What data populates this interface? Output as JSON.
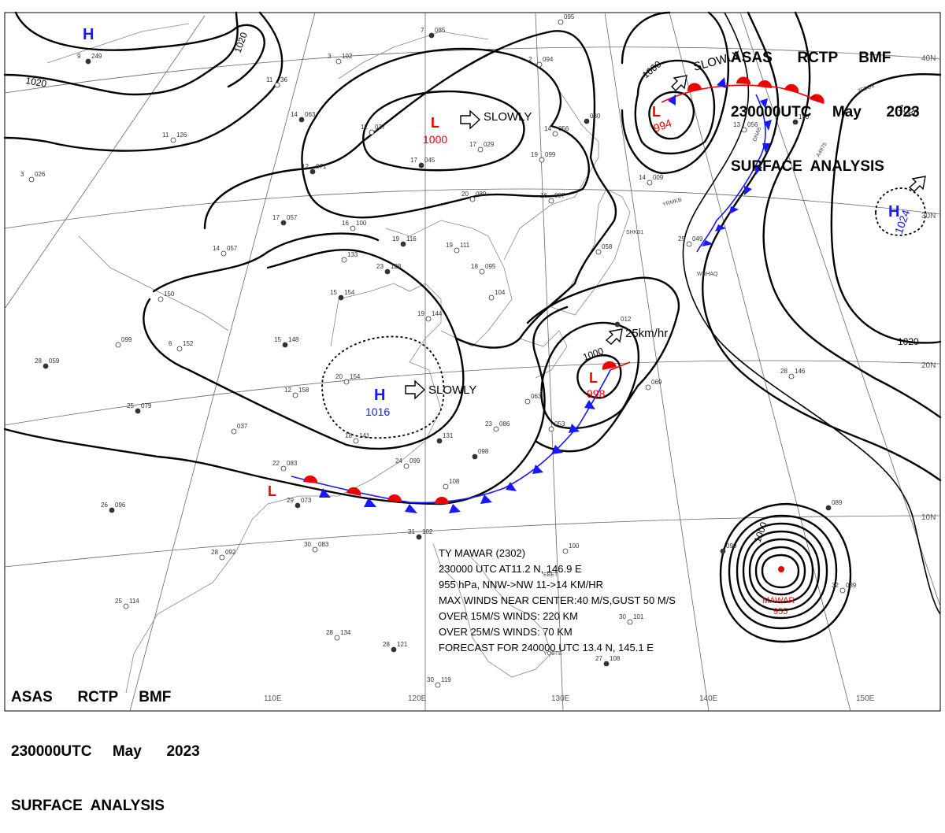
{
  "header": {
    "line1": "ASAS      RCTP     BMF",
    "line2": "230000UTC     May      2023",
    "line3": "SURFACE  ANALYSIS"
  },
  "pressure_centers": [
    {
      "id": "h-nw",
      "type": "H",
      "value": ""
    },
    {
      "id": "l-mongolia",
      "type": "L",
      "value": "1000"
    },
    {
      "id": "l-kamchatka",
      "type": "L",
      "value": "994"
    },
    {
      "id": "h-pacific",
      "type": "H",
      "value": "1024"
    },
    {
      "id": "h-china",
      "type": "H",
      "value": "1016"
    },
    {
      "id": "l-japan",
      "type": "L",
      "value": "998"
    },
    {
      "id": "l-vietnam",
      "type": "L",
      "value": ""
    }
  ],
  "movements": {
    "mongolia": "SLOWLY",
    "china": "SLOWLY",
    "kamchatka": "SLOWLY",
    "japan": "25km/hr"
  },
  "isobar_labels": {
    "a": "1020",
    "b": "1020",
    "c": "1000",
    "d": "1020",
    "e": "1000",
    "f": "1020",
    "g": "1000"
  },
  "typhoon": {
    "name": "MAWAR",
    "pressure": "955",
    "info": {
      "line1": "TY  MAWAR  (2302)",
      "line2": "230000 UTC  AT11.2 N, 146.9 E",
      "line3": "955 hPa, NNW->NW  11->14 KM/HR",
      "line4": "MAX WINDS NEAR CENTER:40 M/S,GUST 50 M/S",
      "line5": "OVER 15M/S WINDS: 220 KM",
      "line6": "OVER 25M/S WINDS: 70 KM",
      "line7": "FORECAST FOR 240000 UTC 13.4 N, 145.1 E"
    }
  },
  "grid_labels": {
    "lon": [
      "110E",
      "120E",
      "130E",
      "140E",
      "150E"
    ],
    "lat": [
      "40N",
      "30N",
      "20N",
      "10N"
    ]
  },
  "stations": [
    {
      "id": "s1",
      "t": "9",
      "p": "249"
    },
    {
      "id": "s2",
      "t": "11",
      "p": "36"
    },
    {
      "id": "s3",
      "t": "3",
      "p": "102"
    },
    {
      "id": "s4",
      "t": "7",
      "p": "085"
    },
    {
      "id": "s5",
      "t": "",
      "p": "095"
    },
    {
      "id": "s6",
      "t": "2",
      "p": "094"
    },
    {
      "id": "s7",
      "t": "14",
      "p": "063"
    },
    {
      "id": "s8",
      "t": "12",
      "p": "037"
    },
    {
      "id": "s9",
      "t": "17",
      "p": "029"
    },
    {
      "id": "s10",
      "t": "17",
      "p": "045"
    },
    {
      "id": "s11",
      "t": "11",
      "p": "126"
    },
    {
      "id": "s12",
      "t": "3",
      "p": "026"
    },
    {
      "id": "s13",
      "t": "12",
      "p": "071"
    },
    {
      "id": "s14",
      "t": "19",
      "p": "099"
    },
    {
      "id": "s15",
      "t": "14",
      "p": "056"
    },
    {
      "id": "s16",
      "t": "",
      "p": "080"
    },
    {
      "id": "s17",
      "t": "20",
      "p": "089"
    },
    {
      "id": "s18",
      "t": "16",
      "p": "087"
    },
    {
      "id": "s19",
      "t": "17",
      "p": "057"
    },
    {
      "id": "s20",
      "t": "16",
      "p": "100"
    },
    {
      "id": "s21",
      "t": "14",
      "p": "057"
    },
    {
      "id": "s22",
      "t": "19",
      "p": "116"
    },
    {
      "id": "s23",
      "t": "19",
      "p": "111"
    },
    {
      "id": "s24",
      "t": "",
      "p": "133"
    },
    {
      "id": "s25",
      "t": "23",
      "p": "128"
    },
    {
      "id": "s26",
      "t": "18",
      "p": "095"
    },
    {
      "id": "s27",
      "t": "",
      "p": "150"
    },
    {
      "id": "s28",
      "t": "15",
      "p": "154"
    },
    {
      "id": "s29",
      "t": "",
      "p": "104"
    },
    {
      "id": "s30",
      "t": "19",
      "p": "144"
    },
    {
      "id": "s31",
      "t": "15",
      "p": "148"
    },
    {
      "id": "s32",
      "t": "6",
      "p": "152"
    },
    {
      "id": "s33",
      "t": "",
      "p": "099"
    },
    {
      "id": "s34",
      "t": "28",
      "p": "059"
    },
    {
      "id": "s35",
      "t": "20",
      "p": "154"
    },
    {
      "id": "s36",
      "t": "12",
      "p": "158"
    },
    {
      "id": "s37",
      "t": "25",
      "p": "079"
    },
    {
      "id": "s38",
      "t": "",
      "p": "037"
    },
    {
      "id": "s39",
      "t": "18",
      "p": "141"
    },
    {
      "id": "s40",
      "t": "",
      "p": "131"
    },
    {
      "id": "s41",
      "t": "23",
      "p": "086"
    },
    {
      "id": "s42",
      "t": "",
      "p": "063"
    },
    {
      "id": "s43",
      "t": "",
      "p": "098"
    },
    {
      "id": "s44",
      "t": "",
      "p": "053"
    },
    {
      "id": "s45",
      "t": "22",
      "p": "083"
    },
    {
      "id": "s46",
      "t": "29",
      "p": "073"
    },
    {
      "id": "s47",
      "t": "",
      "p": "108"
    },
    {
      "id": "s48",
      "t": "24",
      "p": "099"
    },
    {
      "id": "s49",
      "t": "26",
      "p": "096"
    },
    {
      "id": "s50",
      "t": "28",
      "p": "092"
    },
    {
      "id": "s51",
      "t": "30",
      "p": "083"
    },
    {
      "id": "s52",
      "t": "31",
      "p": "102"
    },
    {
      "id": "s53",
      "t": "25",
      "p": "114"
    },
    {
      "id": "s54",
      "t": "28",
      "p": "134"
    },
    {
      "id": "s55",
      "t": "28",
      "p": "121"
    },
    {
      "id": "s56",
      "t": "30",
      "p": "119"
    },
    {
      "id": "s57",
      "t": "",
      "p": "100"
    },
    {
      "id": "s58",
      "t": "",
      "p": "012"
    },
    {
      "id": "s59",
      "t": "",
      "p": "069"
    },
    {
      "id": "s60",
      "t": "28",
      "p": "146"
    },
    {
      "id": "s61",
      "t": "",
      "p": "089"
    },
    {
      "id": "s62",
      "t": "32",
      "p": "089"
    },
    {
      "id": "s63",
      "t": "30",
      "p": "101"
    },
    {
      "id": "s64",
      "t": "27",
      "p": "108"
    },
    {
      "id": "s65",
      "t": "14",
      "p": "009"
    },
    {
      "id": "s66",
      "t": "13",
      "p": "056"
    },
    {
      "id": "s67",
      "t": "",
      "p": "100"
    },
    {
      "id": "s68",
      "t": "25",
      "p": "049"
    },
    {
      "id": "s69",
      "t": "",
      "p": "058"
    },
    {
      "id": "s70",
      "t": "",
      "p": "090"
    }
  ],
  "ship_codes": [
    "3FBC9",
    "A4975",
    "YRMKB",
    "SHK01",
    "WBHAQ",
    "YQBTE",
    "EBET",
    "DNA8"
  ]
}
